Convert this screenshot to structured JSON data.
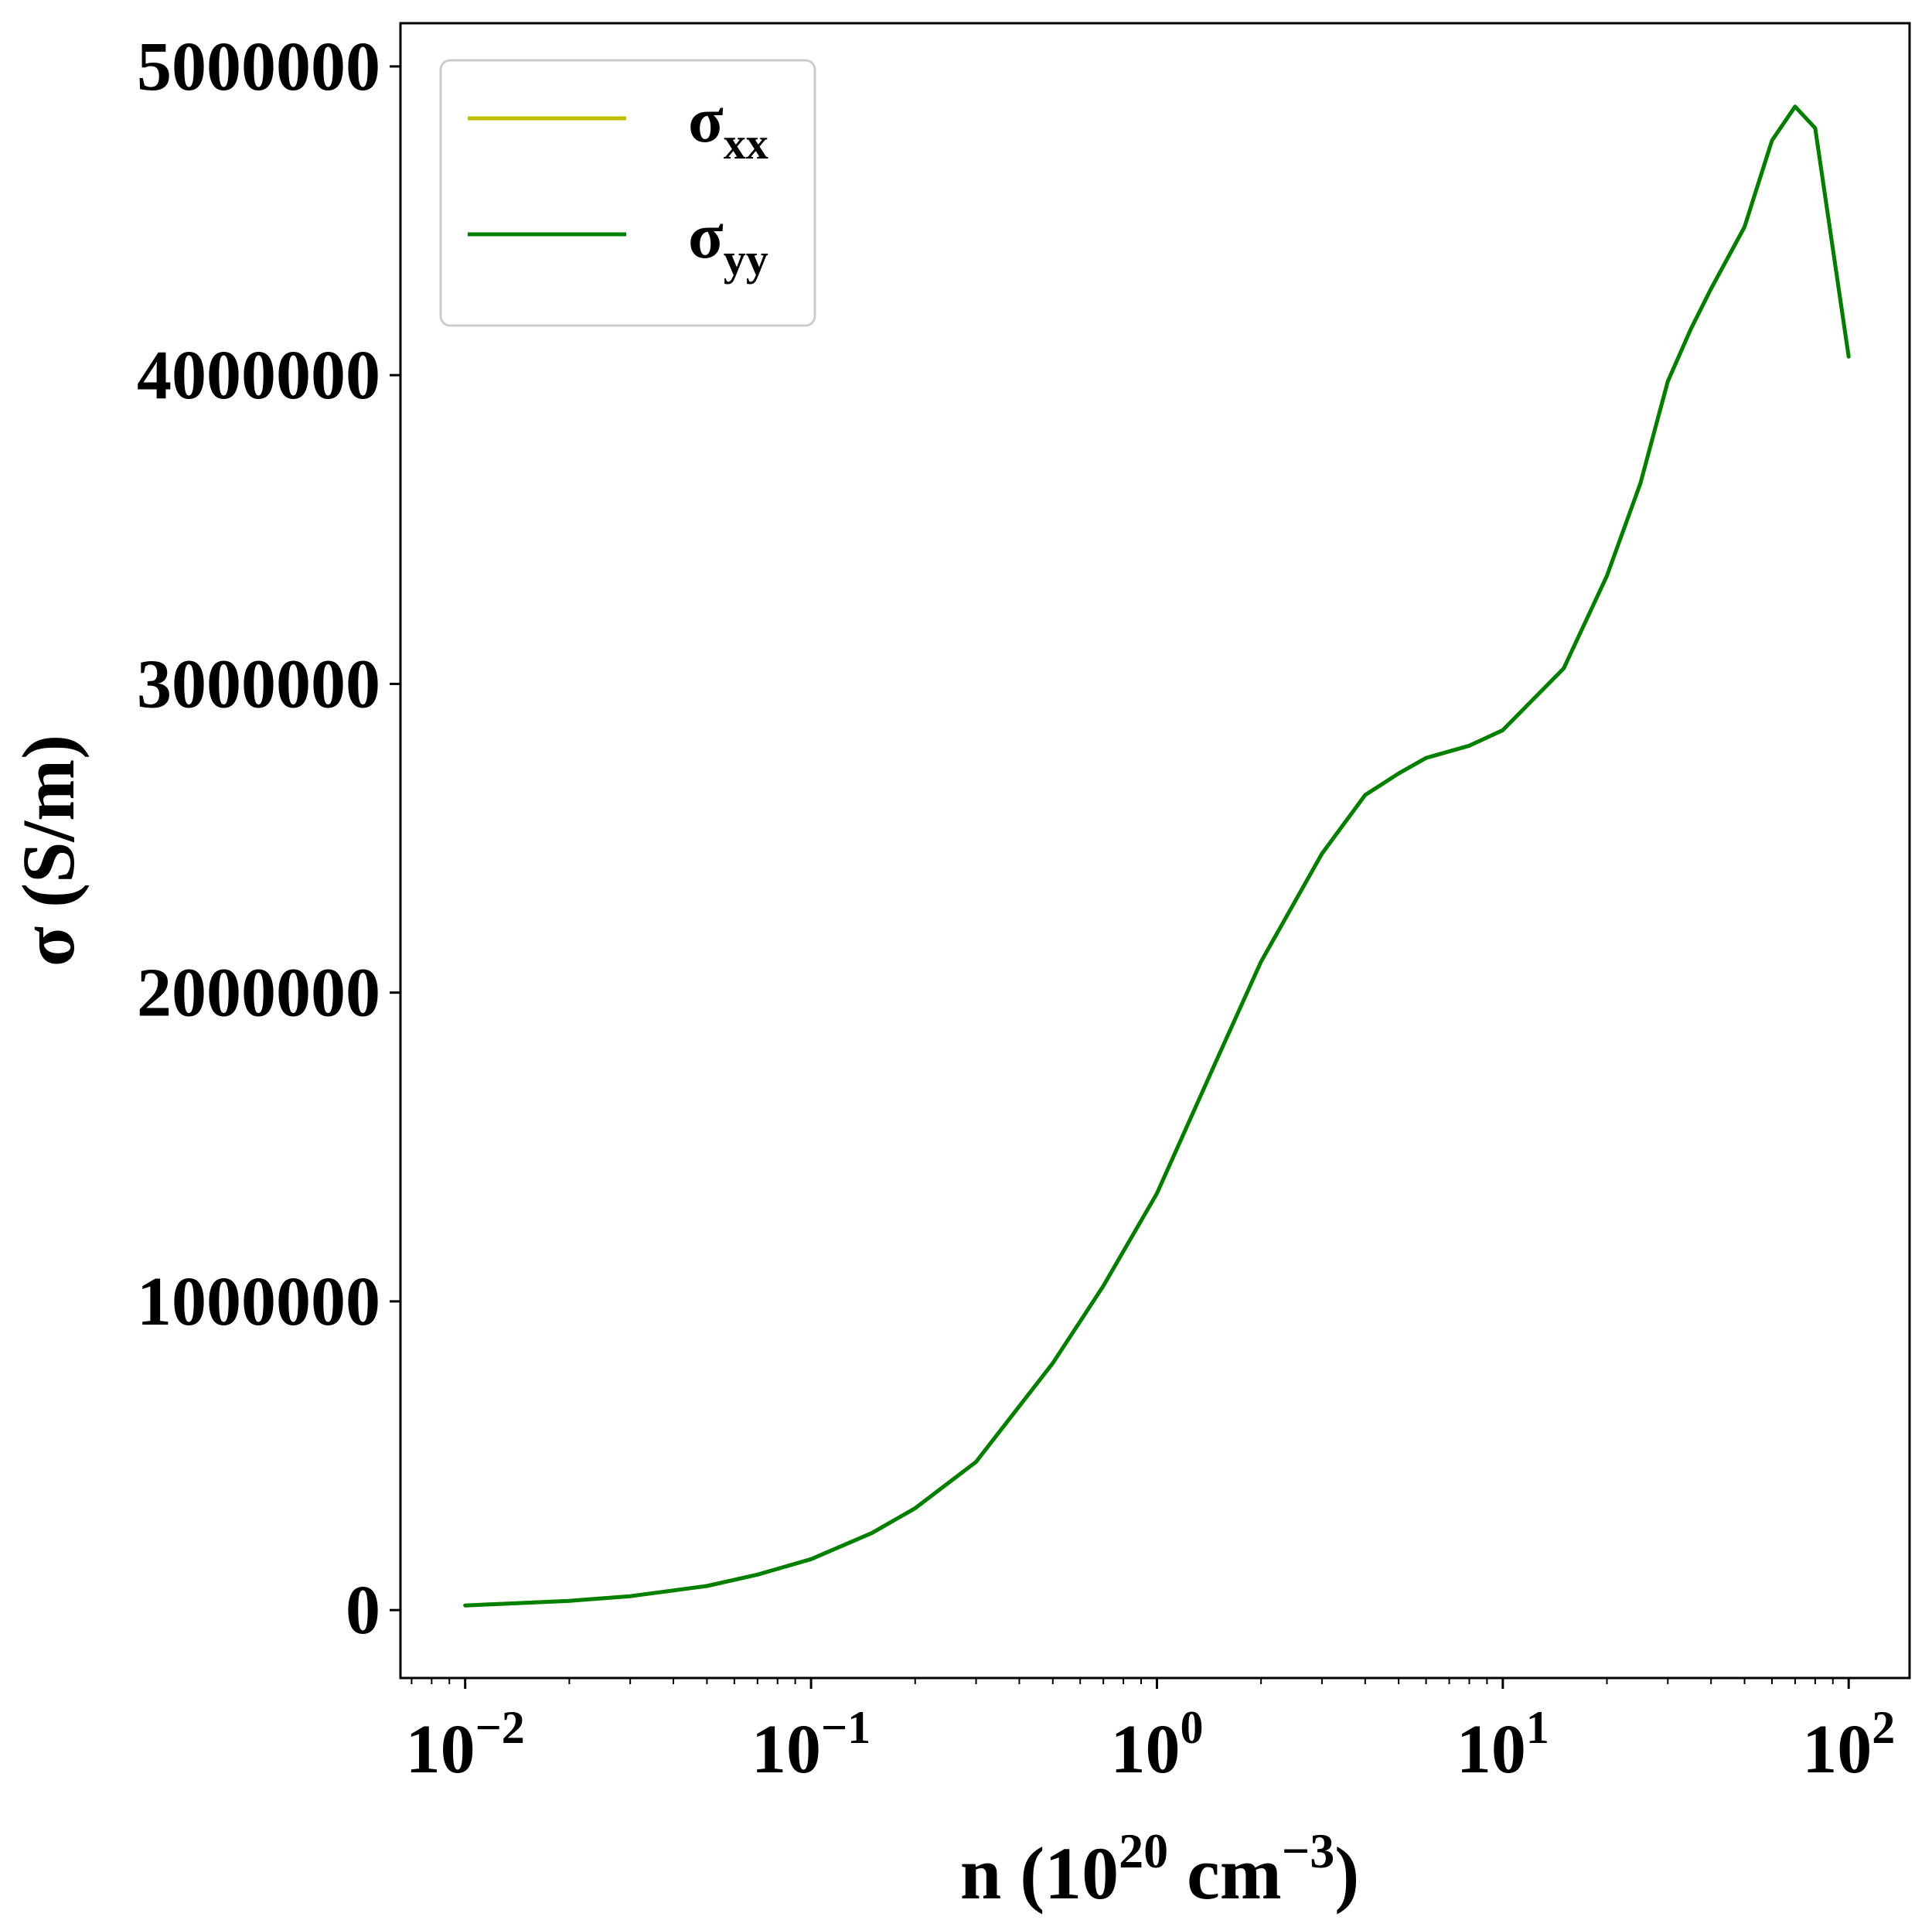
{
  "chart_data": {
    "type": "line",
    "xscale": "log",
    "xlim": [
      0.0065,
      150
    ],
    "ylim": [
      -220000,
      5140000
    ],
    "xlabel": {
      "base": "n (10",
      "exp1": "20",
      "mid": " cm",
      "exp2": "−3",
      "end": ")"
    },
    "ylabel": "σ (S/m)",
    "yticks": [
      0,
      1000000,
      2000000,
      3000000,
      4000000,
      5000000
    ],
    "ytick_labels": [
      "0",
      "1000000",
      "2000000",
      "3000000",
      "4000000",
      "5000000"
    ],
    "xticks": [
      {
        "value": 0.01,
        "base": "10",
        "exp": "−2"
      },
      {
        "value": 0.1,
        "base": "10",
        "exp": "−1"
      },
      {
        "value": 1,
        "base": "10",
        "exp": "0"
      },
      {
        "value": 10,
        "base": "10",
        "exp": "1"
      },
      {
        "value": 100,
        "base": "10",
        "exp": "2"
      }
    ],
    "legend": {
      "position": "top-left",
      "entries": [
        {
          "symbol": "σ",
          "sub": "xx",
          "color": "#bfbf00"
        },
        {
          "symbol": "σ",
          "sub": "yy",
          "color": "#008000"
        }
      ]
    },
    "series": [
      {
        "sub": "xx",
        "color": "#bfbf00",
        "x": [
          0.01,
          0.02,
          0.03,
          0.05,
          0.07,
          0.1,
          0.15,
          0.2,
          0.3,
          0.5,
          0.7,
          1.0,
          1.5,
          2.0,
          3.0,
          4.0,
          5.0,
          6.0,
          8.0,
          10,
          15,
          20,
          25,
          30,
          35,
          40,
          50,
          60,
          70,
          80,
          100
        ],
        "y": [
          15000,
          30000,
          45000,
          78000,
          115000,
          165000,
          250000,
          330000,
          480000,
          800000,
          1050000,
          1350000,
          1790000,
          2100000,
          2450000,
          2640000,
          2710000,
          2760000,
          2800000,
          2850000,
          3050000,
          3350000,
          3650000,
          3980000,
          4150000,
          4280000,
          4480000,
          4760000,
          4870000,
          4800000,
          4060000
        ]
      },
      {
        "sub": "yy",
        "color": "#008000",
        "x": [
          0.01,
          0.02,
          0.03,
          0.05,
          0.07,
          0.1,
          0.15,
          0.2,
          0.3,
          0.5,
          0.7,
          1.0,
          1.5,
          2.0,
          3.0,
          4.0,
          5.0,
          6.0,
          8.0,
          10,
          15,
          20,
          25,
          30,
          35,
          40,
          50,
          60,
          70,
          80,
          100
        ],
        "y": [
          15000,
          30000,
          45000,
          78000,
          115000,
          165000,
          250000,
          330000,
          480000,
          800000,
          1050000,
          1350000,
          1790000,
          2100000,
          2450000,
          2640000,
          2710000,
          2760000,
          2800000,
          2850000,
          3050000,
          3350000,
          3650000,
          3980000,
          4150000,
          4280000,
          4480000,
          4760000,
          4870000,
          4800000,
          4060000
        ]
      }
    ],
    "grid": false
  }
}
